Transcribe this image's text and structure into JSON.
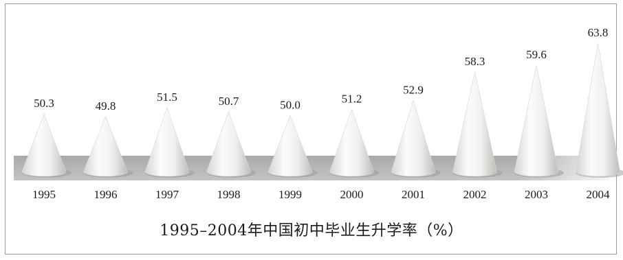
{
  "chart_data": {
    "type": "bar",
    "title": "1995–2004年中国初中毕业生升学率（%）",
    "xlabel": "",
    "ylabel": "",
    "categories": [
      "1995",
      "1996",
      "1997",
      "1998",
      "1999",
      "2000",
      "2001",
      "2002",
      "2003",
      "2004"
    ],
    "values": [
      50.3,
      49.8,
      51.5,
      50.7,
      50.0,
      51.2,
      52.9,
      58.3,
      59.6,
      63.8
    ],
    "value_labels": [
      "50.3",
      "49.8",
      "51.5",
      "50.7",
      "50.0",
      "51.2",
      "52.9",
      "58.3",
      "59.6",
      "63.8"
    ],
    "mark_shape": "cone",
    "grid": false,
    "legend": "none"
  },
  "colors": {
    "band": "#b9b9b9",
    "cone_light": "#f7f7f5",
    "cone_dark": "#c9c9c6",
    "border": "#9a9a9a"
  }
}
